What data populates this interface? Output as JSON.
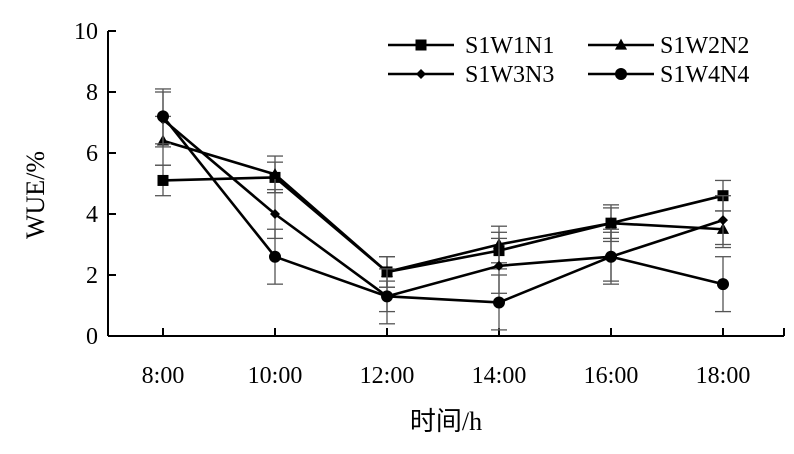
{
  "chart_data": {
    "type": "line",
    "categories": [
      "8:00",
      "10:00",
      "12:00",
      "14:00",
      "16:00",
      "18:00"
    ],
    "xlabel": "时间/h",
    "ylabel": "WUE/%",
    "ylim": [
      0,
      10
    ],
    "yticks": [
      "0",
      "2",
      "4",
      "6",
      "8",
      "10"
    ],
    "grid": false,
    "legend_position": "top-right",
    "series": [
      {
        "name": "S1W1N1",
        "marker": "square",
        "values": [
          5.1,
          5.2,
          2.1,
          2.8,
          3.7,
          4.6
        ],
        "errors": [
          0.5,
          0.5,
          0.5,
          0.6,
          0.5,
          0.5
        ]
      },
      {
        "name": "S1W2N2",
        "marker": "triangle",
        "values": [
          6.4,
          5.3,
          2.1,
          3.0,
          3.7,
          3.5
        ],
        "errors": [
          0.8,
          0.6,
          0.5,
          0.6,
          0.6,
          0.6
        ]
      },
      {
        "name": "S1W3N3",
        "marker": "diamond",
        "values": [
          7.1,
          4.0,
          1.3,
          2.3,
          2.6,
          3.8
        ],
        "errors": [
          0.9,
          0.8,
          0.5,
          0.9,
          0.8,
          0.8
        ]
      },
      {
        "name": "S1W4N4",
        "marker": "circle",
        "values": [
          7.2,
          2.6,
          1.3,
          1.1,
          2.6,
          1.7
        ],
        "errors": [
          0.9,
          0.9,
          0.9,
          0.9,
          0.9,
          0.9
        ]
      }
    ]
  }
}
